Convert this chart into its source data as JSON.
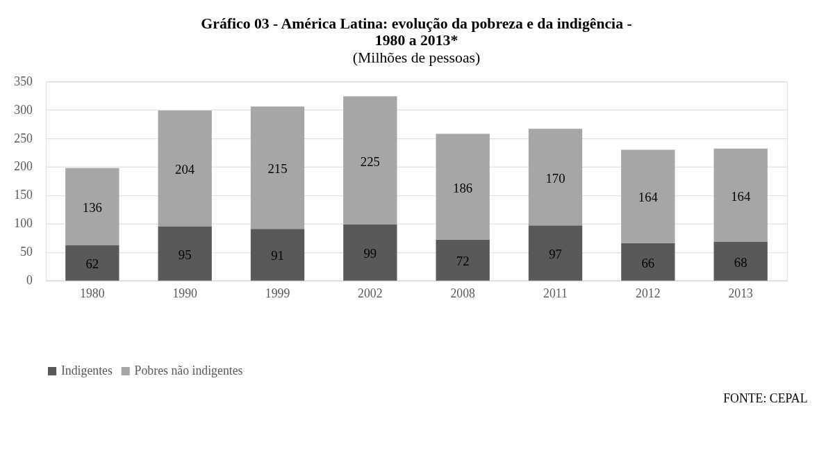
{
  "chart_data": {
    "type": "bar",
    "stacked": true,
    "title": "Gráfico 03 - América Latina: evolução da pobreza e da indigência - 1980 a 2013*",
    "subtitle": "(Milhões de pessoas)",
    "categories": [
      "1980",
      "1990",
      "1999",
      "2002",
      "2008",
      "2011",
      "2012",
      "2013"
    ],
    "series": [
      {
        "name": "Indigentes",
        "color": "#595959",
        "values": [
          62,
          95,
          91,
          99,
          72,
          97,
          66,
          68
        ]
      },
      {
        "name": "Pobres não indigentes",
        "color": "#a6a6a6",
        "values": [
          136,
          204,
          215,
          225,
          186,
          170,
          164,
          164
        ]
      }
    ],
    "ylim": [
      0,
      350
    ],
    "yticks": [
      0,
      50,
      100,
      150,
      200,
      250,
      300,
      350
    ],
    "grid": "y",
    "legend": "bottom",
    "data_labels": true,
    "annotations": [
      "FONTE: CEPAL"
    ]
  }
}
